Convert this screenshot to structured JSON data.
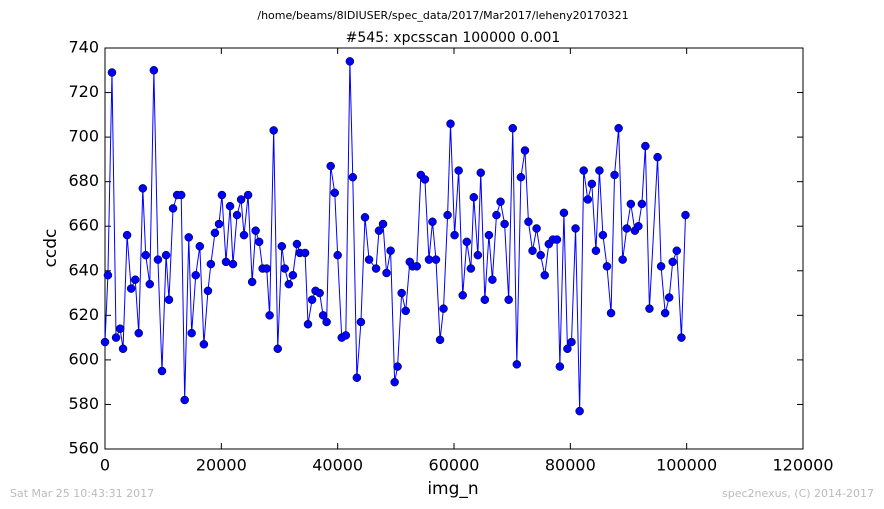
{
  "chart_data": {
    "type": "line",
    "title": "/home/beams/8IDIUSER/spec_data/2017/Mar2017/leheny20170321",
    "subtitle": "#545: xpcsscan 100000 0.001",
    "xlabel": "img_n",
    "ylabel": "ccdc",
    "footer_left": "Sat Mar 25 10:43:31 2017",
    "footer_right": "spec2nexus, (C) 2014-2017",
    "xlim": [
      0,
      120000
    ],
    "xticks": [
      0,
      20000,
      40000,
      60000,
      80000,
      100000,
      120000
    ],
    "ylim": [
      560,
      740
    ],
    "yticks": [
      560,
      580,
      600,
      620,
      640,
      660,
      680,
      700,
      720,
      740
    ],
    "grid": false,
    "x": [
      0,
      500,
      1200,
      1900,
      2600,
      3100,
      3800,
      4500,
      5200,
      5800,
      6500,
      7000,
      7700,
      8400,
      9100,
      9800,
      10500,
      11000,
      11700,
      12400,
      13100,
      13700,
      14400,
      14900,
      15600,
      16300,
      17000,
      17700,
      18200,
      18900,
      19600,
      20100,
      20800,
      21500,
      22000,
      22700,
      23400,
      23900,
      24600,
      25300,
      25900,
      26500,
      27100,
      27800,
      28300,
      29000,
      29700,
      30400,
      30900,
      31600,
      32300,
      33000,
      33500,
      34400,
      34900,
      35600,
      36200,
      36900,
      37500,
      38100,
      38800,
      39500,
      40000,
      40700,
      41400,
      42100,
      42600,
      43300,
      44000,
      44700,
      45400,
      46600,
      47100,
      47800,
      48400,
      49100,
      49800,
      50300,
      51000,
      51700,
      52400,
      52900,
      53600,
      54300,
      55000,
      55700,
      56300,
      56900,
      57600,
      58200,
      58900,
      59400,
      60100,
      60800,
      61500,
      62200,
      62900,
      63400,
      64100,
      64600,
      65300,
      66000,
      66600,
      67300,
      68000,
      68700,
      69400,
      70100,
      70800,
      71500,
      72200,
      72800,
      73500,
      74200,
      74900,
      75600,
      76300,
      77000,
      77700,
      78200,
      78900,
      79500,
      80200,
      80900,
      81600,
      82300,
      83000,
      83700,
      84400,
      85000,
      85600,
      86300,
      87000,
      87600,
      88300,
      89000,
      89700,
      90400,
      91100,
      91700,
      92300,
      92900,
      93600,
      95000,
      95600,
      96300,
      97000,
      97600,
      98300,
      99100,
      99800
    ],
    "series": [
      {
        "name": "ccdc",
        "color": "#0000ff",
        "values": [
          608,
          638,
          729,
          610,
          614,
          605,
          656,
          632,
          636,
          612,
          677,
          647,
          634,
          730,
          645,
          595,
          647,
          627,
          668,
          674,
          674,
          582,
          655,
          612,
          638,
          651,
          607,
          631,
          643,
          657,
          661,
          674,
          644,
          669,
          643,
          665,
          672,
          656,
          674,
          635,
          658,
          653,
          641,
          641,
          620,
          703,
          605,
          651,
          641,
          634,
          638,
          652,
          648,
          648,
          616,
          627,
          631,
          630,
          620,
          617,
          687,
          675,
          647,
          610,
          611,
          734,
          682,
          592,
          617,
          664,
          645,
          641,
          658,
          661,
          639,
          649,
          590,
          597,
          630,
          622,
          644,
          642,
          642,
          683,
          681,
          645,
          662,
          645,
          609,
          623,
          665,
          706,
          656,
          685,
          629,
          653,
          641,
          673,
          647,
          684,
          627,
          656,
          636,
          665,
          671,
          661,
          627,
          704,
          598,
          682,
          694,
          662,
          649,
          659,
          647,
          638,
          652,
          654,
          654,
          597,
          666,
          605,
          608,
          659,
          577,
          685,
          672,
          679,
          649,
          685,
          656,
          642,
          621,
          683,
          704,
          645,
          659,
          670,
          658,
          660,
          670,
          696,
          623,
          691,
          642,
          621,
          628,
          644,
          649,
          610,
          665
        ]
      }
    ]
  }
}
